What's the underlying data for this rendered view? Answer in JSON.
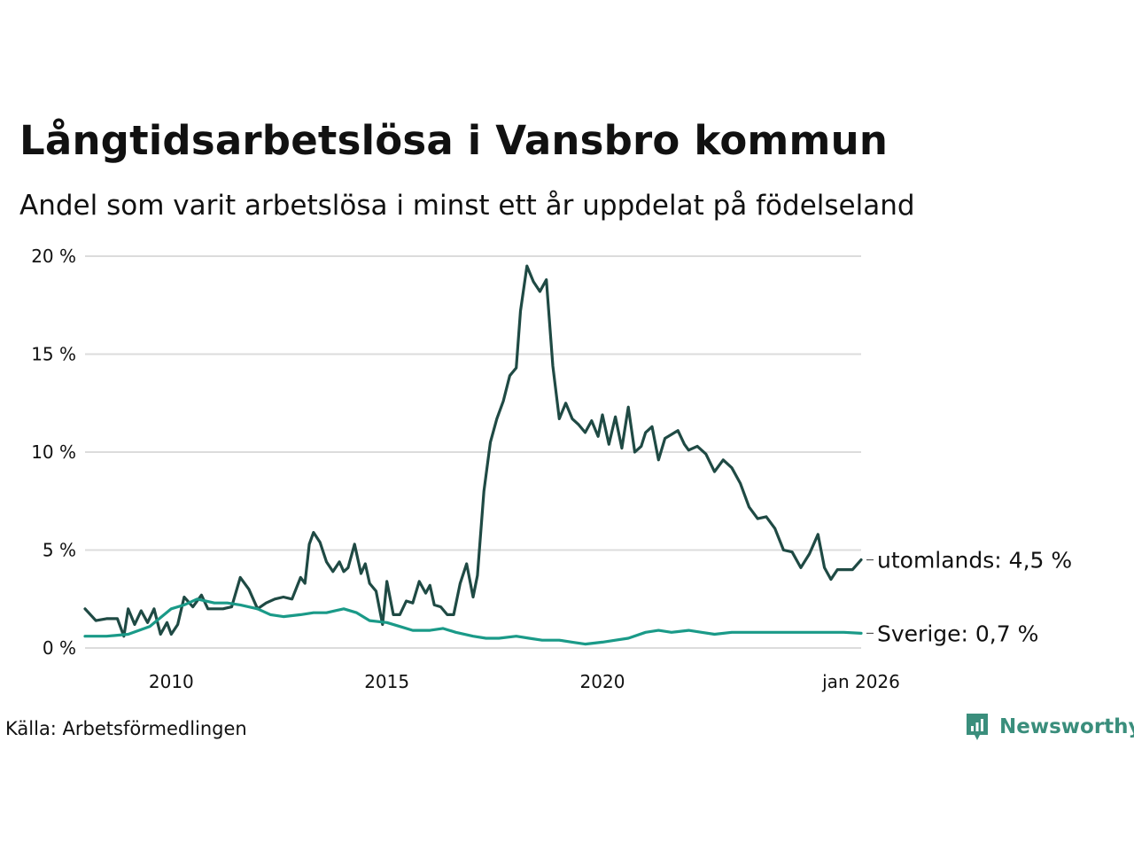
{
  "chart_data": {
    "type": "line",
    "title": "Långtidsarbetslösa i Vansbro kommun",
    "subtitle": "Andel som varit arbetslösa i minst ett år uppdelat på födelseland",
    "xlabel": "",
    "ylabel": "",
    "xlim": [
      2008.0,
      2026.0
    ],
    "ylim": [
      0,
      20
    ],
    "y_ticks": [
      0,
      5,
      10,
      15,
      20
    ],
    "y_tick_labels": [
      "0 %",
      "5 %",
      "10 %",
      "15 %",
      "20 %"
    ],
    "x_ticks": [
      2010,
      2015,
      2020,
      2026
    ],
    "x_tick_labels": [
      "2010",
      "2015",
      "2020",
      "jan 2026"
    ],
    "grid": true,
    "series": [
      {
        "name": "utomlands",
        "end_label": "utomlands: 4,5 %",
        "color": "#1f4a44",
        "x": [
          2008.0,
          2008.25,
          2008.5,
          2008.75,
          2008.9,
          2009.0,
          2009.15,
          2009.3,
          2009.45,
          2009.6,
          2009.75,
          2009.9,
          2010.0,
          2010.15,
          2010.3,
          2010.5,
          2010.7,
          2010.85,
          2011.0,
          2011.2,
          2011.4,
          2011.6,
          2011.8,
          2012.0,
          2012.2,
          2012.4,
          2012.6,
          2012.8,
          2013.0,
          2013.1,
          2013.2,
          2013.3,
          2013.45,
          2013.6,
          2013.75,
          2013.9,
          2014.0,
          2014.1,
          2014.25,
          2014.4,
          2014.5,
          2014.6,
          2014.75,
          2014.9,
          2015.0,
          2015.15,
          2015.3,
          2015.45,
          2015.6,
          2015.75,
          2015.9,
          2016.0,
          2016.1,
          2016.25,
          2016.4,
          2016.55,
          2016.7,
          2016.85,
          2017.0,
          2017.1,
          2017.25,
          2017.4,
          2017.55,
          2017.7,
          2017.85,
          2018.0,
          2018.1,
          2018.25,
          2018.4,
          2018.55,
          2018.7,
          2018.85,
          2019.0,
          2019.15,
          2019.3,
          2019.45,
          2019.6,
          2019.75,
          2019.9,
          2020.0,
          2020.15,
          2020.3,
          2020.45,
          2020.6,
          2020.75,
          2020.9,
          2021.0,
          2021.15,
          2021.3,
          2021.45,
          2021.6,
          2021.75,
          2021.9,
          2022.0,
          2022.2,
          2022.4,
          2022.6,
          2022.8,
          2023.0,
          2023.2,
          2023.4,
          2023.6,
          2023.8,
          2024.0,
          2024.2,
          2024.4,
          2024.6,
          2024.8,
          2025.0,
          2025.15,
          2025.3,
          2025.45,
          2025.6,
          2025.8,
          2026.0
        ],
        "values": [
          2.0,
          1.4,
          1.5,
          1.5,
          0.6,
          2.0,
          1.2,
          1.9,
          1.3,
          2.0,
          0.7,
          1.3,
          0.7,
          1.2,
          2.6,
          2.1,
          2.7,
          2.0,
          2.0,
          2.0,
          2.1,
          3.6,
          3.0,
          2.0,
          2.3,
          2.5,
          2.6,
          2.5,
          3.6,
          3.3,
          5.3,
          5.9,
          5.4,
          4.4,
          3.9,
          4.4,
          3.9,
          4.1,
          5.3,
          3.8,
          4.3,
          3.3,
          2.9,
          1.2,
          3.4,
          1.7,
          1.7,
          2.4,
          2.3,
          3.4,
          2.8,
          3.2,
          2.2,
          2.1,
          1.7,
          1.7,
          3.3,
          4.3,
          2.6,
          3.7,
          8.0,
          10.5,
          11.7,
          12.6,
          13.9,
          14.3,
          17.2,
          19.5,
          18.7,
          18.2,
          18.8,
          14.4,
          11.7,
          12.5,
          11.7,
          11.4,
          11.0,
          11.6,
          10.8,
          11.9,
          10.4,
          11.8,
          10.2,
          12.3,
          10.0,
          10.3,
          11.0,
          11.3,
          9.6,
          10.7,
          10.9,
          11.1,
          10.4,
          10.1,
          10.3,
          9.9,
          9.0,
          9.6,
          9.2,
          8.4,
          7.2,
          6.6,
          6.7,
          6.1,
          5.0,
          4.9,
          4.1,
          4.8,
          5.8,
          4.1,
          3.5,
          4.0,
          4.0,
          4.0,
          4.5
        ]
      },
      {
        "name": "Sverige",
        "end_label": "Sverige: 0,7 %",
        "color": "#1a9a88",
        "x": [
          2008.0,
          2008.5,
          2009.0,
          2009.5,
          2010.0,
          2010.3,
          2010.6,
          2011.0,
          2011.3,
          2011.6,
          2012.0,
          2012.3,
          2012.6,
          2013.0,
          2013.3,
          2013.6,
          2014.0,
          2014.3,
          2014.6,
          2015.0,
          2015.3,
          2015.6,
          2016.0,
          2016.3,
          2016.6,
          2017.0,
          2017.3,
          2017.6,
          2018.0,
          2018.3,
          2018.6,
          2019.0,
          2019.3,
          2019.6,
          2020.0,
          2020.3,
          2020.6,
          2021.0,
          2021.3,
          2021.6,
          2022.0,
          2022.3,
          2022.6,
          2023.0,
          2023.3,
          2023.6,
          2024.0,
          2024.3,
          2024.6,
          2025.0,
          2025.3,
          2025.6,
          2026.0
        ],
        "values": [
          0.6,
          0.6,
          0.7,
          1.1,
          2.0,
          2.2,
          2.5,
          2.3,
          2.3,
          2.2,
          2.0,
          1.7,
          1.6,
          1.7,
          1.8,
          1.8,
          2.0,
          1.8,
          1.4,
          1.3,
          1.1,
          0.9,
          0.9,
          1.0,
          0.8,
          0.6,
          0.5,
          0.5,
          0.6,
          0.5,
          0.4,
          0.4,
          0.3,
          0.2,
          0.3,
          0.4,
          0.5,
          0.8,
          0.9,
          0.8,
          0.9,
          0.8,
          0.7,
          0.8,
          0.8,
          0.8,
          0.8,
          0.8,
          0.8,
          0.8,
          0.8,
          0.8,
          0.75
        ]
      }
    ]
  },
  "source": "Källa: Arbetsförmedlingen",
  "brand": "Newsworthy"
}
